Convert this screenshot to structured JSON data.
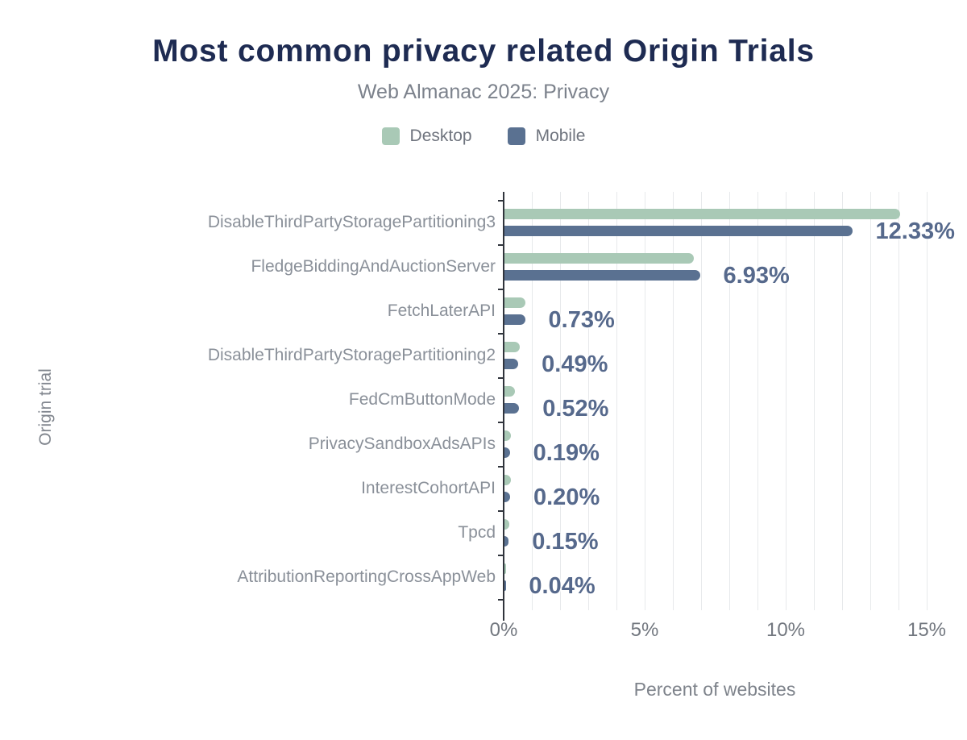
{
  "chart_data": {
    "type": "bar",
    "orientation": "horizontal",
    "title": "Most common privacy related Origin Trials",
    "subtitle": "Web Almanac 2025: Privacy",
    "xlabel": "Percent of websites",
    "ylabel": "Origin trial",
    "xlim": [
      0,
      15.5
    ],
    "grid": "vertical gridlines every 1%",
    "legend_position": "top",
    "categories": [
      "DisableThirdPartyStoragePartitioning3",
      "FledgeBiddingAndAuctionServer",
      "FetchLaterAPI",
      "DisableThirdPartyStoragePartitioning2",
      "FedCmButtonMode",
      "PrivacySandboxAdsAPIs",
      "InterestCohortAPI",
      "Tpcd",
      "AttributionReportingCrossAppWeb"
    ],
    "series": [
      {
        "name": "Desktop",
        "color": "#a9c9b6",
        "values": [
          14.03,
          6.71,
          0.74,
          0.55,
          0.38,
          0.22,
          0.23,
          0.18,
          0.05
        ],
        "note": "values estimated from bar lengths; not labeled in figure"
      },
      {
        "name": "Mobile",
        "color": "#5a7191",
        "values": [
          12.33,
          6.93,
          0.73,
          0.49,
          0.52,
          0.19,
          0.2,
          0.15,
          0.04
        ]
      }
    ],
    "value_labels": [
      "12.33%",
      "6.93%",
      "0.73%",
      "0.49%",
      "0.52%",
      "0.19%",
      "0.20%",
      "0.15%",
      "0.04%"
    ],
    "value_labels_series": "Mobile",
    "x_ticks": [
      {
        "value": 0,
        "label": "0%"
      },
      {
        "value": 5,
        "label": "5%"
      },
      {
        "value": 10,
        "label": "10%"
      },
      {
        "value": 15,
        "label": "15%"
      }
    ],
    "colors": {
      "title": "#1e2b52",
      "subtitle": "#7c828c",
      "category_label": "#8a9099",
      "value_label": "#56698c",
      "axis": "#30343c",
      "gridline": "#e7e9eb",
      "background": "#ffffff"
    }
  }
}
